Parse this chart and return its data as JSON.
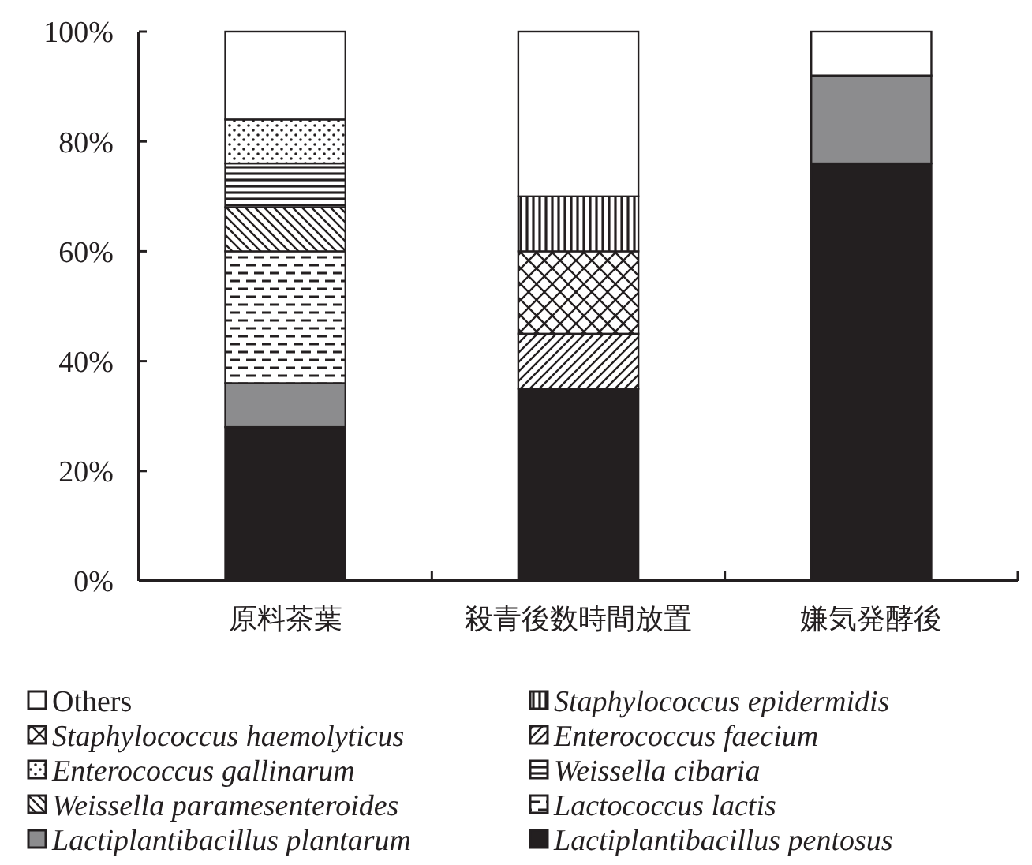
{
  "chart_data": {
    "type": "bar",
    "stacked": true,
    "categories": [
      "原料茶葉",
      "殺青後数時間放置",
      "嫌気発酵後"
    ],
    "series": [
      {
        "name": "Lactiplantibacillus pentosus",
        "color": "#231f20",
        "values": [
          28,
          35,
          76
        ]
      },
      {
        "name": "Lactiplantibacillus plantarum",
        "color": "#8c8c8e",
        "values": [
          8,
          null,
          16
        ]
      },
      {
        "name": "Lactococcus lactis",
        "color": "#231f20",
        "values": [
          24,
          null,
          null
        ]
      },
      {
        "name": "Weissella paramesenteroides",
        "color": "#231f20",
        "values": [
          8,
          null,
          null
        ]
      },
      {
        "name": "Weissella cibaria",
        "color": "#231f20",
        "values": [
          8,
          null,
          null
        ]
      },
      {
        "name": "Enterococcus gallinarum",
        "color": "#231f20",
        "values": [
          8,
          null,
          null
        ]
      },
      {
        "name": "Enterococcus faecium",
        "color": "#231f20",
        "values": [
          null,
          10,
          null
        ]
      },
      {
        "name": "Staphylococcus haemolyticus",
        "color": "#231f20",
        "values": [
          null,
          15,
          null
        ]
      },
      {
        "name": "Staphylococcus epidermidis",
        "color": "#231f20",
        "values": [
          null,
          10,
          null
        ]
      },
      {
        "name": "Others",
        "color": "#ffffff",
        "values": [
          16,
          30,
          8
        ]
      }
    ],
    "ylim": [
      0,
      100
    ],
    "yticks": [
      {
        "value": 0,
        "label": "0%"
      },
      {
        "value": 20,
        "label": "20%"
      },
      {
        "value": 40,
        "label": "40%"
      },
      {
        "value": 60,
        "label": "60%"
      },
      {
        "value": 80,
        "label": "80%"
      },
      {
        "value": 100,
        "label": "100%"
      }
    ],
    "grid": false,
    "legend": "bottom"
  }
}
